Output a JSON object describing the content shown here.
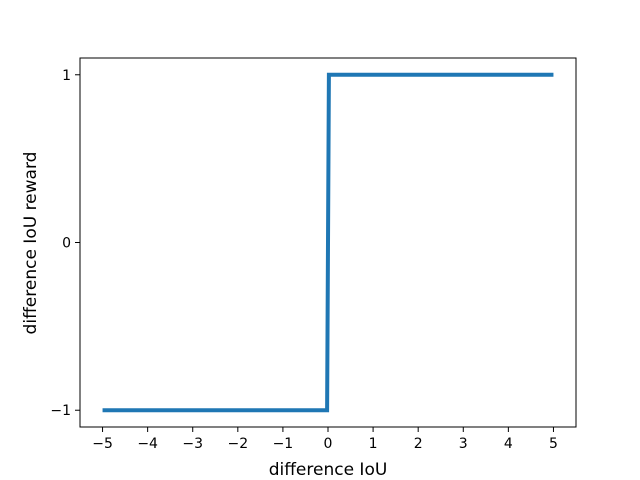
{
  "chart_data": {
    "type": "line",
    "title": "",
    "xlabel": "difference IoU",
    "ylabel": "difference IoU reward",
    "xlim": [
      -5.5,
      5.5
    ],
    "ylim": [
      -1.1,
      1.1
    ],
    "xticks": [
      -5,
      -4,
      -3,
      -2,
      -1,
      0,
      1,
      2,
      3,
      4,
      5
    ],
    "xtick_labels": [
      "−5",
      "−4",
      "−3",
      "−2",
      "−1",
      "0",
      "1",
      "2",
      "3",
      "4",
      "5"
    ],
    "yticks": [
      -1,
      0,
      1
    ],
    "ytick_labels": [
      "−1",
      "0",
      "1"
    ],
    "grid": false,
    "series": [
      {
        "color": "#1f77b4",
        "x": [
          -5,
          -0.02,
          0.02,
          5
        ],
        "y": [
          -1,
          -1,
          1,
          1
        ]
      }
    ]
  }
}
